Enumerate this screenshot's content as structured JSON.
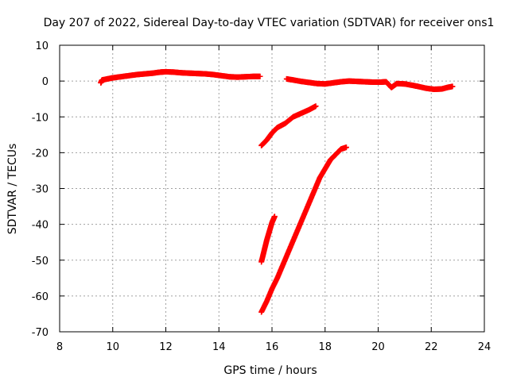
{
  "chart_data": {
    "type": "scatter",
    "title": "Day 207 of 2022, Sidereal Day-to-day VTEC variation (SDTVAR) for receiver ons1",
    "xlabel": "GPS time / hours",
    "ylabel": "SDTVAR / TECUs",
    "xlim": [
      8,
      24
    ],
    "ylim": [
      -70,
      10
    ],
    "xticks": [
      8,
      10,
      12,
      14,
      16,
      18,
      20,
      22,
      24
    ],
    "yticks": [
      -70,
      -60,
      -50,
      -40,
      -30,
      -20,
      -10,
      0,
      10
    ],
    "grid": true,
    "marker": "plus",
    "color": "#ff0000",
    "series": [
      {
        "points": [
          [
            9.55,
            -0.5
          ],
          [
            9.6,
            0.3
          ],
          [
            9.8,
            0.6
          ],
          [
            10.0,
            0.9
          ],
          [
            10.3,
            1.2
          ],
          [
            10.6,
            1.5
          ],
          [
            10.9,
            1.8
          ],
          [
            11.2,
            2.0
          ],
          [
            11.5,
            2.2
          ],
          [
            11.8,
            2.5
          ],
          [
            12.0,
            2.6
          ],
          [
            12.3,
            2.5
          ],
          [
            12.6,
            2.3
          ],
          [
            12.9,
            2.2
          ],
          [
            13.2,
            2.1
          ],
          [
            13.5,
            2.0
          ],
          [
            13.8,
            1.8
          ],
          [
            14.1,
            1.5
          ],
          [
            14.4,
            1.2
          ],
          [
            14.7,
            1.1
          ],
          [
            15.0,
            1.2
          ],
          [
            15.3,
            1.3
          ],
          [
            15.55,
            1.3
          ]
        ]
      },
      {
        "points": [
          [
            16.55,
            0.6
          ],
          [
            16.8,
            0.3
          ],
          [
            17.1,
            -0.1
          ],
          [
            17.4,
            -0.4
          ],
          [
            17.7,
            -0.7
          ],
          [
            18.0,
            -0.8
          ],
          [
            18.3,
            -0.5
          ],
          [
            18.6,
            -0.2
          ],
          [
            18.9,
            0.0
          ],
          [
            19.2,
            -0.1
          ],
          [
            19.5,
            -0.2
          ],
          [
            19.8,
            -0.3
          ],
          [
            20.1,
            -0.3
          ],
          [
            20.3,
            -0.2
          ],
          [
            20.5,
            -1.8
          ],
          [
            20.7,
            -0.7
          ],
          [
            21.0,
            -0.8
          ],
          [
            21.3,
            -1.2
          ],
          [
            21.5,
            -1.5
          ],
          [
            21.8,
            -2.0
          ],
          [
            22.1,
            -2.3
          ],
          [
            22.4,
            -2.2
          ],
          [
            22.6,
            -1.8
          ],
          [
            22.8,
            -1.5
          ]
        ]
      },
      {
        "points": [
          [
            15.6,
            -18.0
          ],
          [
            15.8,
            -16.5
          ],
          [
            16.0,
            -14.5
          ],
          [
            16.2,
            -13.0
          ],
          [
            16.5,
            -11.8
          ],
          [
            16.8,
            -10.0
          ],
          [
            17.1,
            -9.0
          ],
          [
            17.4,
            -8.0
          ],
          [
            17.65,
            -7.0
          ]
        ]
      },
      {
        "points": [
          [
            15.6,
            -50.5
          ],
          [
            15.7,
            -47.5
          ],
          [
            15.8,
            -44.5
          ],
          [
            15.9,
            -42.0
          ],
          [
            16.0,
            -39.5
          ],
          [
            16.1,
            -37.8
          ]
        ]
      },
      {
        "points": [
          [
            15.6,
            -64.5
          ],
          [
            15.8,
            -61.5
          ],
          [
            16.0,
            -58.0
          ],
          [
            16.2,
            -55.0
          ],
          [
            16.4,
            -51.5
          ],
          [
            16.6,
            -48.0
          ],
          [
            16.8,
            -44.5
          ],
          [
            17.0,
            -41.0
          ],
          [
            17.2,
            -37.5
          ],
          [
            17.4,
            -34.0
          ],
          [
            17.6,
            -30.5
          ],
          [
            17.8,
            -27.0
          ],
          [
            18.0,
            -24.5
          ],
          [
            18.2,
            -22.0
          ],
          [
            18.4,
            -20.5
          ],
          [
            18.6,
            -19.0
          ],
          [
            18.8,
            -18.5
          ]
        ]
      }
    ]
  }
}
